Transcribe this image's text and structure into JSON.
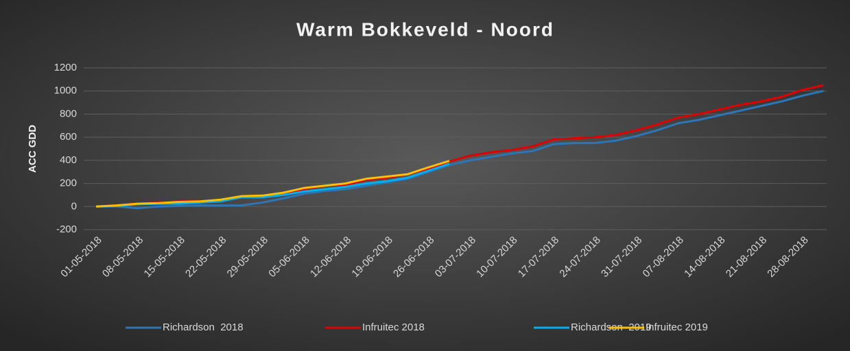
{
  "chart_data": {
    "type": "line",
    "title": "Warm Bokkeveld - Noord",
    "y_label": "ACC GDD",
    "categories": [
      "01-05-2018",
      null,
      "08-05-2018",
      null,
      "15-05-2018",
      null,
      "22-05-2018",
      null,
      "29-05-2018",
      null,
      "05-06-2018",
      null,
      "12-06-2018",
      null,
      "19-06-2018",
      null,
      "26-06-2018",
      null,
      "03-07-2018",
      null,
      "10-07-2018",
      null,
      "17-07-2018",
      null,
      "24-07-2018",
      null,
      "31-07-2018",
      null,
      "07-08-2018",
      null,
      "14-08-2018",
      null,
      "21-08-2018",
      null,
      "28-08-2018",
      null
    ],
    "series": [
      {
        "name": "Richardson  2018",
        "color": "#2e75b6",
        "values": [
          0,
          0,
          -15,
          0,
          5,
          10,
          10,
          10,
          35,
          70,
          110,
          135,
          150,
          180,
          210,
          240,
          300,
          360,
          400,
          430,
          460,
          480,
          540,
          550,
          550,
          570,
          610,
          660,
          720,
          750,
          790,
          830,
          870,
          910,
          960,
          1000
        ]
      },
      {
        "name": "Infruitec 2018",
        "color": "#e00000",
        "values": [
          0,
          10,
          25,
          35,
          45,
          50,
          55,
          80,
          85,
          110,
          150,
          180,
          190,
          230,
          250,
          280,
          330,
          390,
          440,
          470,
          490,
          520,
          580,
          590,
          600,
          620,
          660,
          710,
          770,
          800,
          840,
          880,
          910,
          950,
          1010,
          1050
        ]
      },
      {
        "name": "Richardson  2019",
        "color": "#00b0f0",
        "values": [
          0,
          5,
          20,
          25,
          25,
          35,
          45,
          80,
          80,
          100,
          130,
          150,
          170,
          200,
          220,
          250,
          310,
          370,
          null,
          null,
          null,
          null,
          null,
          null,
          null,
          null,
          null,
          null,
          null,
          null,
          null,
          null,
          null,
          null,
          null,
          null
        ]
      },
      {
        "name": "Infruitec 2019",
        "color": "#ffc000",
        "values": [
          0,
          10,
          25,
          30,
          40,
          45,
          60,
          90,
          95,
          120,
          160,
          180,
          200,
          240,
          260,
          280,
          340,
          395,
          null,
          null,
          null,
          null,
          null,
          null,
          null,
          null,
          null,
          null,
          null,
          null,
          null,
          null,
          null,
          null,
          null,
          null
        ]
      }
    ],
    "ylim": [
      -200,
      1200
    ],
    "yticks": [
      -200,
      0,
      200,
      400,
      600,
      800,
      1000,
      1200
    ],
    "grid": true,
    "legend": "bottom"
  }
}
